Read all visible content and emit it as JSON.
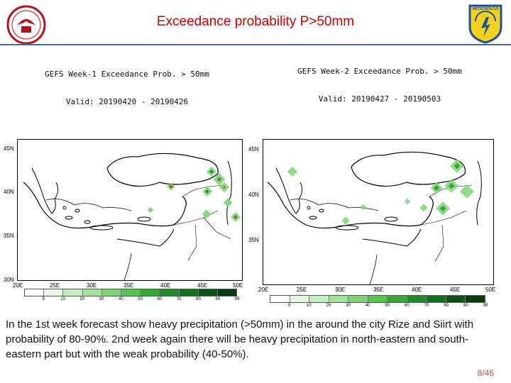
{
  "title": "Exceedance probability P>50mm",
  "logo_right_text": "METEOROLOJİ",
  "panels": [
    {
      "line1": "GEFS Week-1 Exceedance Prob. > 50mm",
      "line2": "Valid: 20190420 - 20190426"
    },
    {
      "line1": "GEFS Week-2 Exceedance Prob. > 50mm",
      "line2": "Valid: 20190427 - 20190503"
    }
  ],
  "lat_labels": [
    "45N",
    "40N",
    "35N",
    "30N"
  ],
  "lon_labels": [
    "20E",
    "25E",
    "30E",
    "35E",
    "40E",
    "45E",
    "50E"
  ],
  "colorbar": {
    "ticks": [
      "5",
      "10",
      "20",
      "30",
      "40",
      "50",
      "60",
      "70",
      "80",
      "90",
      "95"
    ],
    "colors": [
      "#ffffff",
      "#e6f8e6",
      "#c6efc0",
      "#a4e39c",
      "#7fd574",
      "#58c24f",
      "#36a837",
      "#238c2a",
      "#157020",
      "#0a5417",
      "#063c10"
    ]
  },
  "body_text": "In the 1st week forecast show  heavy  precipitation (>50mm) in the around the city Rize and Siirt with  probability of 80-90%. 2nd week again there will be heavy precipitation in north-eastern and south-eastern part but with the weak probability (40-50%).",
  "page_number": "8/46"
}
